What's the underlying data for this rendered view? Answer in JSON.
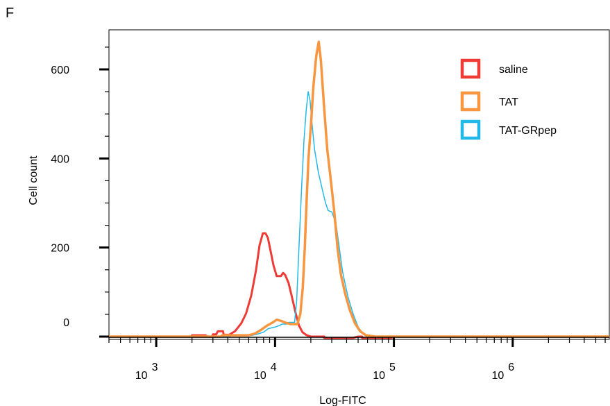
{
  "figure": {
    "panel_label": "F"
  },
  "chart_data": {
    "type": "line",
    "title": "",
    "xlabel": "Log-FITC",
    "ylabel": "Cell count",
    "x_scale": "log",
    "xlim": [
      400,
      6500000
    ],
    "ylim": [
      -10,
      690
    ],
    "x_ticks": [
      {
        "value": 1000,
        "base": "10",
        "exp": "3"
      },
      {
        "value": 10000,
        "base": "10",
        "exp": "4"
      },
      {
        "value": 100000,
        "base": "10",
        "exp": "5"
      },
      {
        "value": 1000000,
        "base": "10",
        "exp": "6"
      }
    ],
    "y_ticks": [
      0,
      200,
      400,
      600
    ],
    "grid": false,
    "legend_position": "top-right",
    "series": [
      {
        "name": "saline",
        "color": "#ef3b36",
        "points": [
          [
            400,
            0
          ],
          [
            1950,
            0
          ],
          [
            2000,
            3
          ],
          [
            2600,
            3
          ],
          [
            2700,
            0
          ],
          [
            3000,
            0
          ],
          [
            3000,
            5
          ],
          [
            3200,
            5
          ],
          [
            3300,
            12
          ],
          [
            3650,
            12
          ],
          [
            3700,
            4
          ],
          [
            4100,
            4
          ],
          [
            4600,
            12
          ],
          [
            5200,
            30
          ],
          [
            5700,
            52
          ],
          [
            6300,
            92
          ],
          [
            6900,
            148
          ],
          [
            7400,
            205
          ],
          [
            7900,
            232
          ],
          [
            8300,
            232
          ],
          [
            8700,
            222
          ],
          [
            9200,
            190
          ],
          [
            9700,
            160
          ],
          [
            10300,
            136
          ],
          [
            11200,
            136
          ],
          [
            11700,
            143
          ],
          [
            12200,
            138
          ],
          [
            13000,
            120
          ],
          [
            13900,
            88
          ],
          [
            14900,
            53
          ],
          [
            15900,
            25
          ],
          [
            17000,
            10
          ],
          [
            18500,
            3
          ],
          [
            20000,
            0
          ],
          [
            26000,
            0
          ],
          [
            26000,
            -3
          ],
          [
            45000,
            -3
          ],
          [
            50000,
            0
          ],
          [
            54000,
            0
          ],
          [
            54000,
            -3
          ],
          [
            95000,
            -3
          ],
          [
            100000,
            0
          ],
          [
            6500000,
            0
          ]
        ]
      },
      {
        "name": "TAT",
        "color": "#f7963f",
        "points": [
          [
            400,
            0
          ],
          [
            3500,
            0
          ],
          [
            3600,
            3
          ],
          [
            6000,
            3
          ],
          [
            6800,
            7
          ],
          [
            7600,
            15
          ],
          [
            8600,
            25
          ],
          [
            9600,
            32
          ],
          [
            10300,
            38
          ],
          [
            11300,
            35
          ],
          [
            12300,
            31
          ],
          [
            13500,
            28
          ],
          [
            15400,
            28
          ],
          [
            16300,
            50
          ],
          [
            17100,
            110
          ],
          [
            17800,
            200
          ],
          [
            18400,
            300
          ],
          [
            19100,
            400
          ],
          [
            20100,
            480
          ],
          [
            21000,
            560
          ],
          [
            22200,
            630
          ],
          [
            23300,
            662
          ],
          [
            24300,
            620
          ],
          [
            25800,
            520
          ],
          [
            27500,
            420
          ],
          [
            29500,
            350
          ],
          [
            31500,
            280
          ],
          [
            33500,
            200
          ],
          [
            35800,
            140
          ],
          [
            39000,
            95
          ],
          [
            42500,
            60
          ],
          [
            47000,
            30
          ],
          [
            52000,
            12
          ],
          [
            58000,
            3
          ],
          [
            70000,
            0
          ],
          [
            6500000,
            0
          ]
        ]
      },
      {
        "name": "TAT-GRpep",
        "color": "#22b8e8",
        "points": [
          [
            400,
            0
          ],
          [
            4200,
            0
          ],
          [
            4200,
            2
          ],
          [
            6200,
            2
          ],
          [
            7000,
            5
          ],
          [
            8000,
            10
          ],
          [
            8800,
            18
          ],
          [
            10200,
            22
          ],
          [
            11500,
            28
          ],
          [
            12500,
            28
          ],
          [
            13000,
            32
          ],
          [
            14600,
            32
          ],
          [
            15200,
            80
          ],
          [
            15900,
            200
          ],
          [
            16700,
            330
          ],
          [
            17500,
            440
          ],
          [
            18300,
            510
          ],
          [
            19000,
            550
          ],
          [
            19700,
            530
          ],
          [
            20600,
            470
          ],
          [
            21500,
            420
          ],
          [
            23100,
            370
          ],
          [
            25000,
            330
          ],
          [
            26600,
            300
          ],
          [
            28000,
            283
          ],
          [
            30000,
            280
          ],
          [
            32500,
            255
          ],
          [
            34700,
            200
          ],
          [
            37000,
            145
          ],
          [
            41000,
            90
          ],
          [
            45500,
            50
          ],
          [
            50000,
            22
          ],
          [
            54500,
            8
          ],
          [
            58000,
            2
          ],
          [
            63000,
            0
          ],
          [
            75000,
            0
          ],
          [
            80000,
            -2
          ],
          [
            87000,
            0
          ],
          [
            6500000,
            0
          ]
        ]
      }
    ]
  }
}
